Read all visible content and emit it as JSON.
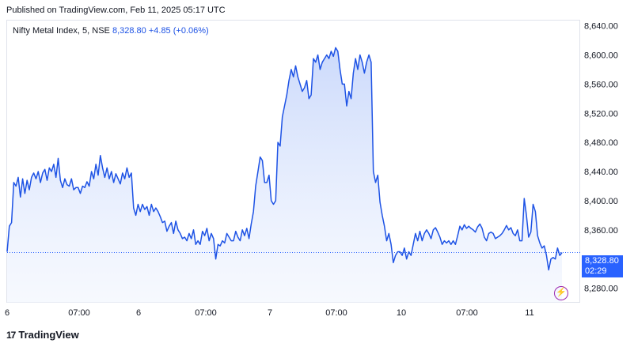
{
  "header": {
    "published": "Published on TradingView.com, Feb 11, 2025 05:17 UTC"
  },
  "legend": {
    "symbol": "Nifty Metal Index, 5, NSE",
    "last": "8,328.80",
    "change": "+4.85 (+0.06%)"
  },
  "price_badge": {
    "price": "8,328.80",
    "countdown": "02:29"
  },
  "brand": {
    "logo": "17",
    "name": "TradingView"
  },
  "icons": {
    "bolt": "lightning-icon"
  },
  "colors": {
    "line": "#1e53e5",
    "badge": "#2962ff",
    "fill_top": "#c9d8fb"
  },
  "chart_data": {
    "type": "area",
    "title": "Nifty Metal Index, 5, NSE",
    "ylim": [
      8260,
      8650
    ],
    "y_ticks": [
      "8,280.00",
      "8,320.00",
      "8,360.00",
      "8,400.00",
      "8,440.00",
      "8,480.00",
      "8,520.00",
      "8,560.00",
      "8,600.00",
      "8,640.00"
    ],
    "x_ticks": [
      "6",
      "07:00",
      "6",
      "07:00",
      "7",
      "07:00",
      "10",
      "07:00",
      "11"
    ],
    "current_price": 8328.8,
    "series": [
      {
        "values": [
          8330,
          8365,
          8370,
          8425,
          8420,
          8432,
          8405,
          8430,
          8410,
          8428,
          8415,
          8432,
          8438,
          8430,
          8440,
          8425,
          8438,
          8443,
          8428,
          8445,
          8440,
          8450,
          8432,
          8458,
          8428,
          8418,
          8430,
          8422,
          8420,
          8430,
          8415,
          8418,
          8418,
          8410,
          8420,
          8418,
          8426,
          8420,
          8440,
          8430,
          8450,
          8435,
          8462,
          8445,
          8432,
          8445,
          8430,
          8440,
          8425,
          8437,
          8430,
          8423,
          8438,
          8430,
          8445,
          8432,
          8438,
          8390,
          8380,
          8395,
          8385,
          8395,
          8388,
          8392,
          8380,
          8395,
          8385,
          8390,
          8385,
          8378,
          8370,
          8372,
          8358,
          8365,
          8370,
          8355,
          8372,
          8360,
          8355,
          8348,
          8350,
          8345,
          8355,
          8348,
          8360,
          8340,
          8345,
          8340,
          8358,
          8352,
          8362,
          8345,
          8355,
          8348,
          8320,
          8340,
          8338,
          8345,
          8342,
          8355,
          8350,
          8345,
          8345,
          8358,
          8350,
          8345,
          8360,
          8352,
          8362,
          8348,
          8368,
          8385,
          8420,
          8440,
          8460,
          8455,
          8425,
          8425,
          8435,
          8400,
          8395,
          8400,
          8480,
          8475,
          8515,
          8530,
          8545,
          8565,
          8580,
          8570,
          8585,
          8570,
          8560,
          8550,
          8555,
          8565,
          8540,
          8545,
          8595,
          8590,
          8600,
          8580,
          8590,
          8595,
          8600,
          8595,
          8605,
          8598,
          8610,
          8605,
          8580,
          8560,
          8560,
          8530,
          8550,
          8540,
          8575,
          8595,
          8580,
          8600,
          8590,
          8575,
          8590,
          8600,
          8590,
          8440,
          8425,
          8435,
          8398,
          8380,
          8365,
          8345,
          8355,
          8340,
          8315,
          8325,
          8330,
          8330,
          8325,
          8335,
          8320,
          8330,
          8325,
          8340,
          8355,
          8345,
          8358,
          8345,
          8355,
          8360,
          8355,
          8348,
          8360,
          8363,
          8357,
          8350,
          8340,
          8345,
          8342,
          8345,
          8340,
          8345,
          8340,
          8352,
          8365,
          8360,
          8367,
          8362,
          8365,
          8362,
          8360,
          8357,
          8364,
          8368,
          8362,
          8350,
          8345,
          8355,
          8357,
          8355,
          8348,
          8350,
          8352,
          8355,
          8360,
          8366,
          8360,
          8363,
          8355,
          8352,
          8360,
          8345,
          8345,
          8403,
          8380,
          8350,
          8357,
          8395,
          8385,
          8352,
          8342,
          8335,
          8338,
          8325,
          8305,
          8320,
          8322,
          8320,
          8335,
          8325,
          8328.8
        ]
      }
    ]
  }
}
